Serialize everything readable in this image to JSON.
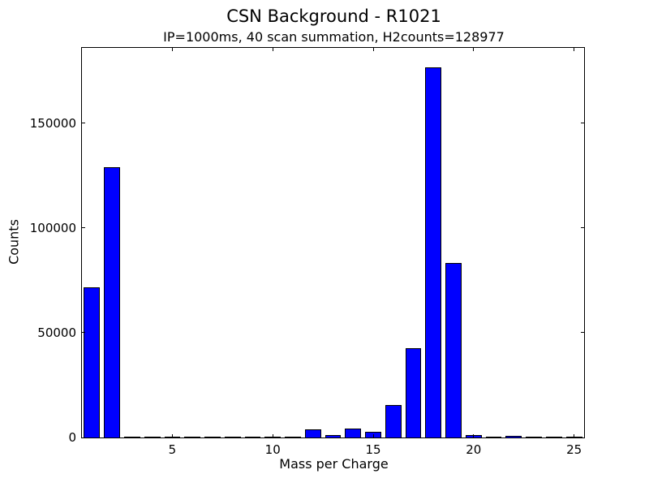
{
  "chart_data": {
    "type": "bar",
    "title": "CSN Background - R1021",
    "subtitle": "IP=1000ms, 40 scan summation, H2counts=128977",
    "xlabel": "Mass per Charge",
    "ylabel": "Counts",
    "categories": [
      1,
      2,
      3,
      4,
      5,
      6,
      7,
      8,
      9,
      10,
      11,
      12,
      13,
      14,
      15,
      16,
      17,
      18,
      19,
      20,
      21,
      22,
      23,
      24,
      25
    ],
    "values": [
      71800,
      128977,
      200,
      200,
      200,
      200,
      200,
      200,
      200,
      200,
      200,
      3800,
      1100,
      4400,
      2800,
      15400,
      42500,
      176800,
      83500,
      1200,
      80,
      950,
      80,
      80,
      80
    ],
    "bar_width": 0.8,
    "xlim": [
      0.5,
      25.5
    ],
    "ylim": [
      0,
      186000
    ],
    "xticks": [
      5,
      10,
      15,
      20,
      25
    ],
    "yticks": [
      0,
      50000,
      100000,
      150000
    ],
    "bar_color": "#0000ff",
    "bar_edge_color": "#000000",
    "axis_color": "#000000",
    "background": "#ffffff",
    "grid": false
  }
}
